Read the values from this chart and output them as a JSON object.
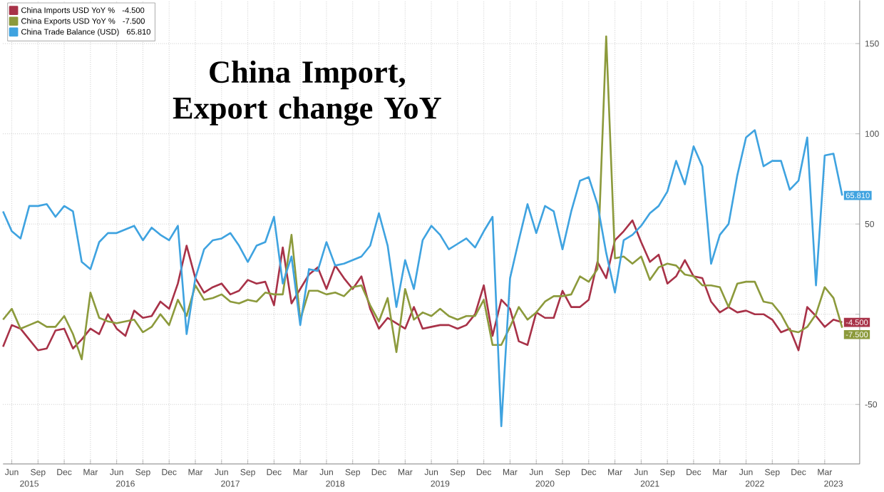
{
  "chart_data": {
    "type": "line",
    "title": "China Import, Export change YoY",
    "x": [
      "2015-05",
      "2015-06",
      "2015-07",
      "2015-08",
      "2015-09",
      "2015-10",
      "2015-11",
      "2015-12",
      "2016-01",
      "2016-02",
      "2016-03",
      "2016-04",
      "2016-05",
      "2016-06",
      "2016-07",
      "2016-08",
      "2016-09",
      "2016-10",
      "2016-11",
      "2016-12",
      "2017-01",
      "2017-02",
      "2017-03",
      "2017-04",
      "2017-05",
      "2017-06",
      "2017-07",
      "2017-08",
      "2017-09",
      "2017-10",
      "2017-11",
      "2017-12",
      "2018-01",
      "2018-02",
      "2018-03",
      "2018-04",
      "2018-05",
      "2018-06",
      "2018-07",
      "2018-08",
      "2018-09",
      "2018-10",
      "2018-11",
      "2018-12",
      "2019-01",
      "2019-02",
      "2019-03",
      "2019-04",
      "2019-05",
      "2019-06",
      "2019-07",
      "2019-08",
      "2019-09",
      "2019-10",
      "2019-11",
      "2019-12",
      "2020-01",
      "2020-02",
      "2020-03",
      "2020-04",
      "2020-05",
      "2020-06",
      "2020-07",
      "2020-08",
      "2020-09",
      "2020-10",
      "2020-11",
      "2020-12",
      "2021-01",
      "2021-02",
      "2021-03",
      "2021-04",
      "2021-05",
      "2021-06",
      "2021-07",
      "2021-08",
      "2021-09",
      "2021-10",
      "2021-11",
      "2021-12",
      "2022-01",
      "2022-02",
      "2022-03",
      "2022-04",
      "2022-05",
      "2022-06",
      "2022-07",
      "2022-08",
      "2022-09",
      "2022-10",
      "2022-11",
      "2022-12",
      "2023-01",
      "2023-02",
      "2023-03",
      "2023-04",
      "2023-05"
    ],
    "series": [
      {
        "name": "China Imports USD YoY %",
        "color": "#a83248",
        "values": [
          -18,
          -6,
          -8,
          -14,
          -20,
          -19,
          -9,
          -8,
          -19,
          -14,
          -8,
          -11,
          0,
          -8,
          -12,
          2,
          -2,
          -1,
          7,
          3,
          17,
          38,
          20,
          12,
          15,
          17,
          11,
          13,
          19,
          17,
          18,
          5,
          37,
          6,
          14,
          22,
          26,
          14,
          27,
          20,
          14,
          21,
          3,
          -8,
          -2,
          -5,
          -8,
          4,
          -8,
          -7,
          -6,
          -6,
          -8,
          -6,
          0,
          16,
          -12,
          8,
          3,
          -15,
          -17,
          1,
          -2,
          -2,
          13,
          4,
          4,
          8,
          29,
          20,
          41,
          46,
          52,
          40,
          29,
          33,
          17,
          21,
          30,
          21,
          20,
          7,
          1,
          4,
          1,
          2,
          0,
          0,
          -3,
          -10,
          -8,
          -20,
          4,
          -1,
          -7,
          -3,
          -4.5
        ],
        "value_labels": [
          null,
          null,
          null,
          null,
          null,
          null,
          null,
          null,
          null,
          null,
          null,
          null,
          null,
          null,
          null,
          null,
          null,
          null,
          null,
          null,
          null,
          null,
          null,
          null,
          null,
          null,
          null,
          null,
          null,
          null,
          null,
          null,
          null,
          null,
          null,
          null,
          null,
          null,
          null,
          null,
          null,
          null,
          null,
          null,
          null,
          null,
          null,
          null,
          null,
          null,
          null,
          null,
          null,
          null,
          null,
          null,
          null,
          null,
          null,
          null,
          null,
          null,
          null,
          null,
          null,
          null,
          null,
          null,
          null,
          null,
          null,
          null,
          null,
          null,
          null,
          null,
          null,
          null,
          null,
          null,
          null,
          null,
          null,
          null,
          null,
          null,
          null,
          null,
          null,
          null,
          null,
          null,
          null,
          null,
          null,
          null,
          "-4.500"
        ]
      },
      {
        "name": "China Exports USD YoY %",
        "color": "#8c9a3c",
        "values": [
          -3,
          3,
          -8,
          -6,
          -4,
          -7,
          -7,
          -1,
          -11,
          -25,
          12,
          -2,
          -4,
          -5,
          -4,
          -3,
          -10,
          -7,
          0,
          -6,
          8,
          -1,
          16,
          8,
          9,
          11,
          7,
          6,
          8,
          7,
          12,
          11,
          11,
          44,
          -3,
          13,
          13,
          11,
          12,
          10,
          15,
          16,
          5,
          -4,
          9,
          -21,
          14,
          -3,
          1,
          -1,
          3,
          -1,
          -3,
          -1,
          -1,
          8,
          -17,
          -17,
          -7,
          4,
          -3,
          1,
          7,
          10,
          10,
          11,
          21,
          18,
          25,
          154,
          31,
          32,
          28,
          32,
          19,
          26,
          28,
          27,
          22,
          21,
          16,
          16,
          15,
          4,
          17,
          18,
          18,
          7,
          6,
          0,
          -9,
          -10,
          -7,
          0,
          15,
          9,
          -7.5
        ],
        "value_labels": [
          null,
          null,
          null,
          null,
          null,
          null,
          null,
          null,
          null,
          null,
          null,
          null,
          null,
          null,
          null,
          null,
          null,
          null,
          null,
          null,
          null,
          null,
          null,
          null,
          null,
          null,
          null,
          null,
          null,
          null,
          null,
          null,
          null,
          null,
          null,
          null,
          null,
          null,
          null,
          null,
          null,
          null,
          null,
          null,
          null,
          null,
          null,
          null,
          null,
          null,
          null,
          null,
          null,
          null,
          null,
          null,
          null,
          null,
          null,
          null,
          null,
          null,
          null,
          null,
          null,
          null,
          null,
          null,
          null,
          null,
          null,
          null,
          null,
          null,
          null,
          null,
          null,
          null,
          null,
          null,
          null,
          null,
          null,
          null,
          null,
          null,
          null,
          null,
          null,
          null,
          null,
          null,
          null,
          null,
          null,
          null,
          "-7.500"
        ]
      },
      {
        "name": "China Trade Balance (USD)",
        "color": "#3fa3e0",
        "values": [
          57,
          46,
          42,
          60,
          60,
          61,
          54,
          60,
          57,
          29,
          25,
          40,
          45,
          45,
          47,
          49,
          41,
          48,
          44,
          41,
          49,
          -11,
          20,
          36,
          41,
          42,
          45,
          38,
          29,
          38,
          40,
          54,
          17,
          32,
          -6,
          25,
          24,
          40,
          27,
          28,
          30,
          32,
          38,
          56,
          38,
          4,
          30,
          14,
          41,
          49,
          44,
          36,
          39,
          42,
          37,
          46,
          54,
          -62,
          20,
          41,
          61,
          45,
          60,
          57,
          36,
          57,
          74,
          76,
          61,
          34,
          12,
          41,
          44,
          49,
          56,
          60,
          68,
          85,
          72,
          93,
          82,
          28,
          44,
          50,
          77,
          98,
          102,
          82,
          85,
          85,
          69,
          74,
          98,
          16,
          88,
          89,
          65.81
        ],
        "value_labels": [
          null,
          null,
          null,
          null,
          null,
          null,
          null,
          null,
          null,
          null,
          null,
          null,
          null,
          null,
          null,
          null,
          null,
          null,
          null,
          null,
          null,
          null,
          null,
          null,
          null,
          null,
          null,
          null,
          null,
          null,
          null,
          null,
          null,
          null,
          null,
          null,
          null,
          null,
          null,
          null,
          null,
          null,
          null,
          null,
          null,
          null,
          null,
          null,
          null,
          null,
          null,
          null,
          null,
          null,
          null,
          null,
          null,
          null,
          null,
          null,
          null,
          null,
          null,
          null,
          null,
          null,
          null,
          null,
          null,
          null,
          null,
          null,
          null,
          null,
          null,
          null,
          null,
          null,
          null,
          null,
          null,
          null,
          null,
          null,
          null,
          null,
          null,
          null,
          null,
          null,
          null,
          null,
          null,
          null,
          null,
          null,
          "65.810"
        ]
      }
    ],
    "xlim": [
      "2015-05",
      "2023-07"
    ],
    "xticks": [
      {
        "value": "2015-06",
        "label": "Jun"
      },
      {
        "value": "2015-09",
        "label": "Sep"
      },
      {
        "value": "2015-12",
        "label": "Dec"
      },
      {
        "value": "2016-03",
        "label": "Mar"
      },
      {
        "value": "2016-06",
        "label": "Jun"
      },
      {
        "value": "2016-09",
        "label": "Sep"
      },
      {
        "value": "2016-12",
        "label": "Dec"
      },
      {
        "value": "2017-03",
        "label": "Mar"
      },
      {
        "value": "2017-06",
        "label": "Jun"
      },
      {
        "value": "2017-09",
        "label": "Sep"
      },
      {
        "value": "2017-12",
        "label": "Dec"
      },
      {
        "value": "2018-03",
        "label": "Mar"
      },
      {
        "value": "2018-06",
        "label": "Jun"
      },
      {
        "value": "2018-09",
        "label": "Sep"
      },
      {
        "value": "2018-12",
        "label": "Dec"
      },
      {
        "value": "2019-03",
        "label": "Mar"
      },
      {
        "value": "2019-06",
        "label": "Jun"
      },
      {
        "value": "2019-09",
        "label": "Sep"
      },
      {
        "value": "2019-12",
        "label": "Dec"
      },
      {
        "value": "2020-03",
        "label": "Mar"
      },
      {
        "value": "2020-06",
        "label": "Jun"
      },
      {
        "value": "2020-09",
        "label": "Sep"
      },
      {
        "value": "2020-12",
        "label": "Dec"
      },
      {
        "value": "2021-03",
        "label": "Mar"
      },
      {
        "value": "2021-06",
        "label": "Jun"
      },
      {
        "value": "2021-09",
        "label": "Sep"
      },
      {
        "value": "2021-12",
        "label": "Dec"
      },
      {
        "value": "2022-03",
        "label": "Mar"
      },
      {
        "value": "2022-06",
        "label": "Jun"
      },
      {
        "value": "2022-09",
        "label": "Sep"
      },
      {
        "value": "2022-12",
        "label": "Dec"
      },
      {
        "value": "2023-03",
        "label": "Mar"
      }
    ],
    "x2lim": [
      "2015-05",
      "2023-07"
    ],
    "x2ticks": [
      {
        "value": "2015-08",
        "label": "2015"
      },
      {
        "value": "2016-07",
        "label": "2016"
      },
      {
        "value": "2017-07",
        "label": "2017"
      },
      {
        "value": "2018-07",
        "label": "2018"
      },
      {
        "value": "2019-07",
        "label": "2019"
      },
      {
        "value": "2020-07",
        "label": "2020"
      },
      {
        "value": "2021-07",
        "label": "2021"
      },
      {
        "value": "2022-07",
        "label": "2022"
      },
      {
        "value": "2023-04",
        "label": "2023"
      }
    ],
    "ylim": [
      -83,
      174
    ],
    "yticks": [
      -50,
      {
        "value": 0,
        "label": null
      },
      50,
      100,
      150
    ],
    "grid": true,
    "legend": "top left",
    "marker": "none",
    "line_style": "solid"
  }
}
